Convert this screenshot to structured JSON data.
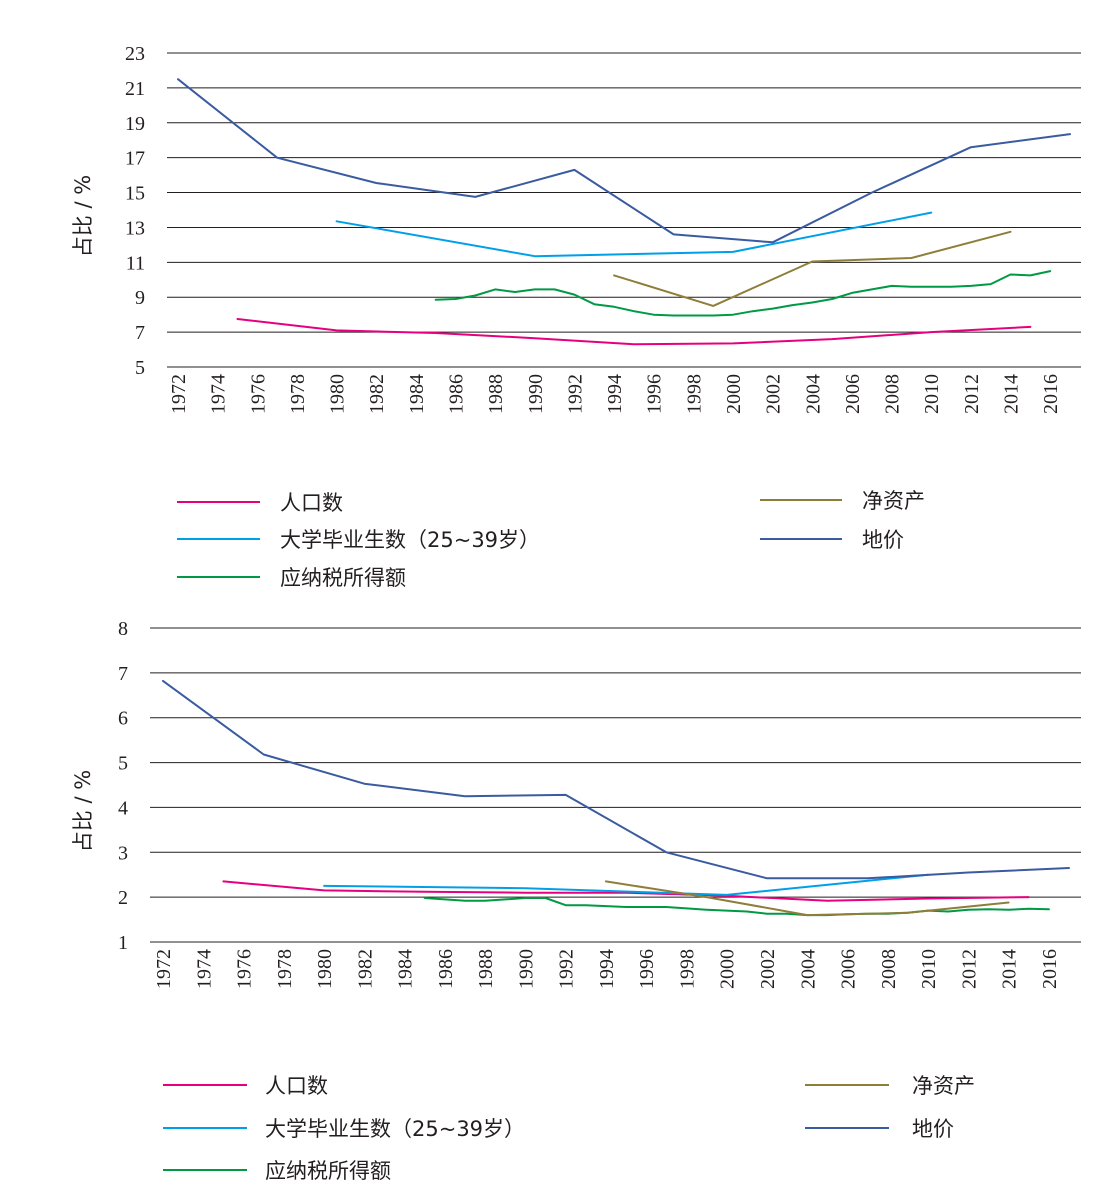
{
  "chart_data": [
    {
      "type": "line",
      "ylabel": "占比 / %",
      "ylim": [
        5,
        23
      ],
      "yticks": [
        5,
        7,
        9,
        11,
        13,
        15,
        17,
        19,
        21,
        23
      ],
      "xlim": [
        1972,
        2017
      ],
      "xticks": [
        1972,
        1974,
        1976,
        1978,
        1980,
        1982,
        1984,
        1986,
        1988,
        1990,
        1992,
        1994,
        1996,
        1998,
        2000,
        2002,
        2004,
        2006,
        2008,
        2010,
        2012,
        2014,
        2016
      ],
      "grid": "horizontal",
      "legend_position": "bottom",
      "series": [
        {
          "name": "人口数",
          "color": "#e6007e",
          "points": [
            [
              1975,
              7.75
            ],
            [
              1980,
              7.1
            ],
            [
              1985,
              6.95
            ],
            [
              1990,
              6.65
            ],
            [
              1995,
              6.3
            ],
            [
              2000,
              6.35
            ],
            [
              2005,
              6.6
            ],
            [
              2010,
              7.0
            ],
            [
              2015,
              7.3
            ]
          ]
        },
        {
          "name": "大学毕业生数（25~39岁）",
          "color": "#00a0e9",
          "points": [
            [
              1980,
              13.35
            ],
            [
              1990,
              11.35
            ],
            [
              2000,
              11.6
            ],
            [
              2010,
              13.85
            ]
          ]
        },
        {
          "name": "应纳税所得额",
          "color": "#009944",
          "points": [
            [
              1985,
              8.85
            ],
            [
              1986,
              8.9
            ],
            [
              1987,
              9.1
            ],
            [
              1988,
              9.45
            ],
            [
              1989,
              9.3
            ],
            [
              1990,
              9.45
            ],
            [
              1991,
              9.45
            ],
            [
              1992,
              9.15
            ],
            [
              1993,
              8.6
            ],
            [
              1994,
              8.45
            ],
            [
              1995,
              8.2
            ],
            [
              1996,
              8.0
            ],
            [
              1997,
              7.95
            ],
            [
              1998,
              7.95
            ],
            [
              1999,
              7.95
            ],
            [
              2000,
              8.0
            ],
            [
              2001,
              8.2
            ],
            [
              2002,
              8.35
            ],
            [
              2003,
              8.55
            ],
            [
              2004,
              8.7
            ],
            [
              2005,
              8.9
            ],
            [
              2006,
              9.25
            ],
            [
              2007,
              9.45
            ],
            [
              2008,
              9.65
            ],
            [
              2009,
              9.6
            ],
            [
              2010,
              9.6
            ],
            [
              2011,
              9.6
            ],
            [
              2012,
              9.65
            ],
            [
              2013,
              9.75
            ],
            [
              2014,
              10.3
            ],
            [
              2015,
              10.25
            ],
            [
              2016,
              10.5
            ]
          ]
        },
        {
          "name": "净资产",
          "color": "#8f7e3a",
          "points": [
            [
              1994,
              10.25
            ],
            [
              1999,
              8.5
            ],
            [
              2004,
              11.05
            ],
            [
              2009,
              11.25
            ],
            [
              2014,
              12.75
            ]
          ]
        },
        {
          "name": "地价",
          "color": "#3a5ba0",
          "points": [
            [
              1972,
              21.5
            ],
            [
              1977,
              17.0
            ],
            [
              1982,
              15.55
            ],
            [
              1987,
              14.75
            ],
            [
              1992,
              16.3
            ],
            [
              1997,
              12.6
            ],
            [
              2002,
              12.15
            ],
            [
              2007,
              15.0
            ],
            [
              2012,
              17.6
            ],
            [
              2017,
              18.35
            ]
          ]
        }
      ]
    },
    {
      "type": "line",
      "ylabel": "占比 / %",
      "ylim": [
        1,
        8
      ],
      "yticks": [
        1,
        2,
        3,
        4,
        5,
        6,
        7,
        8
      ],
      "xlim": [
        1972,
        2017
      ],
      "xticks": [
        1972,
        1974,
        1976,
        1978,
        1980,
        1982,
        1984,
        1986,
        1988,
        1990,
        1992,
        1994,
        1996,
        1998,
        2000,
        2002,
        2004,
        2006,
        2008,
        2010,
        2012,
        2014,
        2016
      ],
      "grid": "horizontal",
      "legend_position": "bottom",
      "series": [
        {
          "name": "人口数",
          "color": "#e6007e",
          "points": [
            [
              1975,
              2.35
            ],
            [
              1980,
              2.15
            ],
            [
              1985,
              2.12
            ],
            [
              1990,
              2.1
            ],
            [
              1995,
              2.1
            ],
            [
              2000,
              2.03
            ],
            [
              2005,
              1.92
            ],
            [
              2010,
              1.97
            ],
            [
              2015,
              2.0
            ]
          ]
        },
        {
          "name": "大学毕业生数（25~39岁）",
          "color": "#00a0e9",
          "points": [
            [
              1980,
              2.25
            ],
            [
              1990,
              2.2
            ],
            [
              2000,
              2.05
            ],
            [
              2010,
              2.5
            ]
          ]
        },
        {
          "name": "应纳税所得额",
          "color": "#009944",
          "points": [
            [
              1985,
              1.98
            ],
            [
              1986,
              1.95
            ],
            [
              1987,
              1.92
            ],
            [
              1988,
              1.92
            ],
            [
              1989,
              1.95
            ],
            [
              1990,
              1.98
            ],
            [
              1991,
              1.98
            ],
            [
              1992,
              1.82
            ],
            [
              1993,
              1.82
            ],
            [
              1994,
              1.8
            ],
            [
              1995,
              1.78
            ],
            [
              1996,
              1.78
            ],
            [
              1997,
              1.78
            ],
            [
              1998,
              1.75
            ],
            [
              1999,
              1.72
            ],
            [
              2000,
              1.7
            ],
            [
              2001,
              1.68
            ],
            [
              2002,
              1.63
            ],
            [
              2003,
              1.63
            ],
            [
              2004,
              1.6
            ],
            [
              2005,
              1.6
            ],
            [
              2006,
              1.62
            ],
            [
              2007,
              1.63
            ],
            [
              2008,
              1.63
            ],
            [
              2009,
              1.65
            ],
            [
              2010,
              1.7
            ],
            [
              2011,
              1.68
            ],
            [
              2012,
              1.72
            ],
            [
              2013,
              1.73
            ],
            [
              2014,
              1.72
            ],
            [
              2015,
              1.74
            ],
            [
              2016,
              1.73
            ]
          ]
        },
        {
          "name": "净资产",
          "color": "#8f7e3a",
          "points": [
            [
              1994,
              2.35
            ],
            [
              1999,
              2.0
            ],
            [
              2004,
              1.6
            ],
            [
              2009,
              1.65
            ],
            [
              2014,
              1.88
            ]
          ]
        },
        {
          "name": "地价",
          "color": "#3a5ba0",
          "points": [
            [
              1972,
              6.82
            ],
            [
              1977,
              5.18
            ],
            [
              1982,
              4.53
            ],
            [
              1987,
              4.25
            ],
            [
              1992,
              4.28
            ],
            [
              1997,
              3.0
            ],
            [
              2002,
              2.42
            ],
            [
              2007,
              2.42
            ],
            [
              2012,
              2.55
            ],
            [
              2017,
              2.65
            ]
          ]
        }
      ]
    }
  ]
}
